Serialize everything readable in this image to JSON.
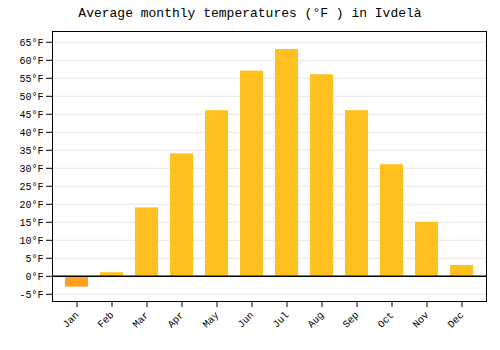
{
  "chart_data": {
    "type": "bar",
    "title": "Average monthly temperatures (°F ) in Ivdelà",
    "categories": [
      "Jan",
      "Feb",
      "Mar",
      "Apr",
      "May",
      "Jun",
      "Jul",
      "Aug",
      "Sep",
      "Oct",
      "Nov",
      "Dec"
    ],
    "values": [
      -3,
      1,
      19,
      34,
      46,
      57,
      63,
      56,
      46,
      31,
      15,
      3
    ],
    "colors": [
      "#FFA020",
      "#FFC020",
      "#FFC020",
      "#FFC020",
      "#FFC020",
      "#FFC020",
      "#FFC020",
      "#FFC020",
      "#FFC020",
      "#FFC020",
      "#FFC020",
      "#FFC020"
    ],
    "ylim": [
      -7,
      68
    ],
    "yticks": [
      {
        "value": -5,
        "label": "-5°F"
      },
      {
        "value": 0,
        "label": "0°F"
      },
      {
        "value": 5,
        "label": "5°F"
      },
      {
        "value": 10,
        "label": "10°F"
      },
      {
        "value": 15,
        "label": "15°F"
      },
      {
        "value": 20,
        "label": "20°F"
      },
      {
        "value": 25,
        "label": "25°F"
      },
      {
        "value": 30,
        "label": "30°F"
      },
      {
        "value": 35,
        "label": "35°F"
      },
      {
        "value": 40,
        "label": "40°F"
      },
      {
        "value": 45,
        "label": "45°F"
      },
      {
        "value": 50,
        "label": "50°F"
      },
      {
        "value": 55,
        "label": "55°F"
      },
      {
        "value": 60,
        "label": "60°F"
      },
      {
        "value": 65,
        "label": "65°F"
      }
    ],
    "grid": true
  }
}
